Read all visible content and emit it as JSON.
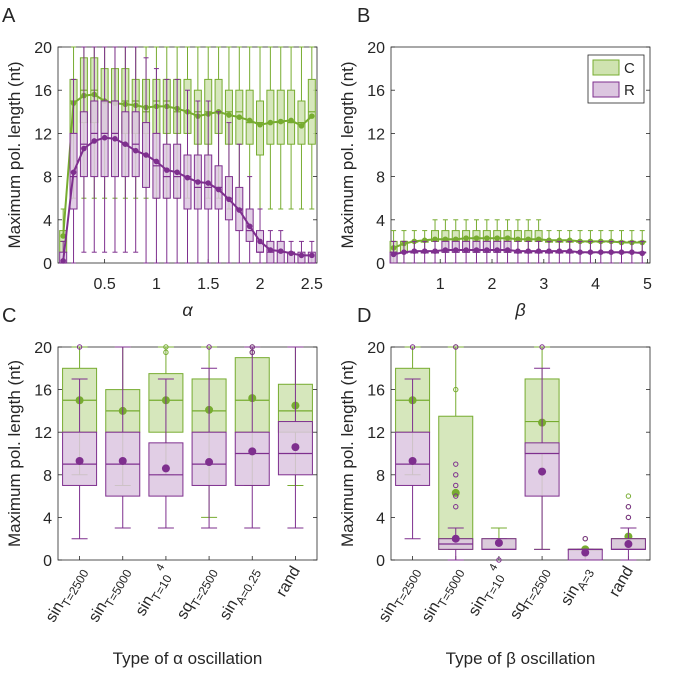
{
  "colors": {
    "C_line": "#77ac30",
    "C_fill": "#cfe3b0",
    "R_line": "#7e2f8e",
    "R_fill": "#dcc6e0",
    "axis": "#262626"
  },
  "chart_data": [
    {
      "panel": "A",
      "type": "box",
      "xlabel": "α",
      "ylabel": "Maximum pol. length (nt)",
      "xlim": [
        0.05,
        2.55
      ],
      "ylim": [
        0,
        20
      ],
      "xticks": [
        0.5,
        1,
        1.5,
        2,
        2.5
      ],
      "xticklabels": [
        "0.5",
        "1",
        "1.5",
        "2",
        "2.5"
      ],
      "yticks": [
        0,
        4,
        8,
        12,
        16,
        20
      ],
      "x": [
        0.1,
        0.2,
        0.3,
        0.4,
        0.5,
        0.6,
        0.7,
        0.8,
        0.9,
        1.0,
        1.1,
        1.2,
        1.3,
        1.4,
        1.5,
        1.6,
        1.7,
        1.8,
        1.9,
        2.0,
        2.1,
        2.2,
        2.3,
        2.4,
        2.5
      ],
      "series": [
        {
          "name": "C",
          "means": [
            2.5,
            14.8,
            15.5,
            15.6,
            15.0,
            14.8,
            14.7,
            14.6,
            14.4,
            14.5,
            14.5,
            14.3,
            14.0,
            13.6,
            13.8,
            14.0,
            13.7,
            13.5,
            13.2,
            12.8,
            13.0,
            13.1,
            13.2,
            12.7,
            13.6
          ],
          "medians": [
            2,
            15,
            16,
            16,
            15,
            15,
            15,
            15,
            14,
            15,
            15,
            14,
            14,
            14,
            14,
            14,
            14,
            14,
            13,
            13,
            13,
            13,
            13,
            13,
            14
          ],
          "q1": [
            1,
            12,
            13,
            13,
            12,
            12,
            12,
            12,
            12,
            12,
            12,
            12,
            12,
            11,
            11,
            12,
            11,
            11,
            11,
            10,
            11,
            11,
            11,
            11,
            11
          ],
          "q3": [
            3,
            17,
            19,
            19,
            18,
            18,
            18,
            17,
            17,
            17,
            17,
            17,
            17,
            16,
            17,
            17,
            16,
            16,
            16,
            15,
            16,
            16,
            16,
            15,
            17
          ],
          "wlo": [
            0,
            6,
            6,
            6,
            6,
            6,
            6,
            6,
            6,
            6,
            6,
            6,
            6,
            5,
            6,
            6,
            5,
            5,
            5,
            5,
            5,
            5,
            5,
            5,
            5
          ],
          "whi": [
            5,
            20,
            20,
            20,
            20,
            20,
            20,
            20,
            20,
            20,
            20,
            20,
            20,
            20,
            20,
            20,
            20,
            20,
            20,
            20,
            20,
            20,
            20,
            20,
            20
          ]
        },
        {
          "name": "R",
          "means": [
            0.2,
            8.4,
            10.6,
            11.3,
            11.6,
            11.5,
            11.0,
            10.4,
            10.0,
            9.4,
            8.6,
            8.4,
            7.9,
            7.5,
            7.4,
            6.8,
            5.9,
            4.9,
            3.4,
            2.0,
            1.2,
            1.1,
            0.9,
            0.7,
            0.7
          ],
          "medians": [
            0,
            8,
            11,
            12,
            12,
            12,
            11,
            11,
            10,
            9,
            8,
            8,
            8,
            7,
            7,
            7,
            6,
            5,
            3,
            1,
            1,
            1,
            1,
            0,
            0
          ],
          "q1": [
            0,
            5,
            8,
            8,
            8,
            8,
            8,
            8,
            7,
            6,
            6,
            6,
            5,
            5,
            5,
            5,
            4,
            3,
            2,
            1,
            0,
            0,
            0,
            0,
            0
          ],
          "q3": [
            1,
            12,
            14,
            15,
            15,
            15,
            14,
            14,
            13,
            12,
            11,
            11,
            10,
            10,
            10,
            9,
            8,
            7,
            5,
            3,
            2,
            2,
            1,
            1,
            1
          ],
          "wlo": [
            0,
            0,
            1,
            1,
            1,
            1,
            1,
            1,
            0,
            0,
            0,
            0,
            0,
            0,
            0,
            0,
            0,
            0,
            0,
            0,
            0,
            0,
            0,
            0,
            0
          ],
          "whi": [
            2,
            17,
            20,
            20,
            20,
            20,
            20,
            20,
            19,
            18,
            17,
            17,
            16,
            15,
            15,
            14,
            13,
            11,
            8,
            5,
            3,
            3,
            2,
            2,
            2
          ]
        }
      ]
    },
    {
      "panel": "B",
      "type": "box",
      "xlabel": "β",
      "ylabel": "Maximum pol. length (nt)",
      "xlim": [
        0.05,
        5.05
      ],
      "ylim": [
        0,
        20
      ],
      "xticks": [
        1,
        2,
        3,
        4,
        5
      ],
      "xticklabels": [
        "1",
        "2",
        "3",
        "4",
        "5"
      ],
      "yticks": [
        0,
        4,
        8,
        12,
        16,
        20
      ],
      "legend": {
        "placement": "top-right",
        "entries": [
          "C",
          "R"
        ]
      },
      "x": [
        0.1,
        0.3,
        0.5,
        0.7,
        0.9,
        1.1,
        1.3,
        1.5,
        1.7,
        1.9,
        2.1,
        2.3,
        2.5,
        2.7,
        2.9,
        3.1,
        3.3,
        3.5,
        3.7,
        3.9,
        4.1,
        4.3,
        4.5,
        4.7,
        4.9
      ],
      "series": [
        {
          "name": "C",
          "means": [
            1.4,
            1.8,
            2.0,
            2.1,
            2.2,
            2.2,
            2.2,
            2.3,
            2.3,
            2.3,
            2.3,
            2.3,
            2.2,
            2.2,
            2.2,
            2.1,
            2.1,
            2.1,
            2.0,
            2.0,
            2.0,
            2.0,
            1.9,
            1.9,
            1.9
          ],
          "medians": [
            1,
            2,
            2,
            2,
            2,
            2,
            2,
            2,
            2,
            2,
            2,
            2,
            2,
            2,
            2,
            2,
            2,
            2,
            2,
            2,
            2,
            2,
            2,
            2,
            2
          ],
          "q1": [
            1,
            1,
            2,
            2,
            2,
            2,
            2,
            2,
            2,
            2,
            2,
            2,
            2,
            2,
            2,
            2,
            2,
            2,
            2,
            2,
            2,
            2,
            2,
            2,
            2
          ],
          "q3": [
            2,
            2,
            2,
            2,
            3,
            3,
            3,
            3,
            3,
            3,
            3,
            3,
            3,
            3,
            3,
            2,
            2,
            2,
            2,
            2,
            2,
            2,
            2,
            2,
            2
          ],
          "wlo": [
            0,
            0,
            1,
            1,
            1,
            1,
            1,
            1,
            1,
            1,
            1,
            1,
            1,
            1,
            1,
            1,
            1,
            1,
            1,
            1,
            1,
            1,
            1,
            1,
            1
          ],
          "whi": [
            3,
            3,
            3,
            3,
            4,
            4,
            4,
            4,
            4,
            4,
            4,
            4,
            4,
            4,
            4,
            3,
            3,
            3,
            3,
            3,
            3,
            3,
            3,
            3,
            3
          ]
        },
        {
          "name": "R",
          "means": [
            0.8,
            1.0,
            1.1,
            1.1,
            1.1,
            1.2,
            1.2,
            1.2,
            1.2,
            1.2,
            1.2,
            1.2,
            1.1,
            1.1,
            1.1,
            1.1,
            1.1,
            1.1,
            1.0,
            1.0,
            1.0,
            1.0,
            1.0,
            1.0,
            0.9
          ],
          "medians": [
            1,
            1,
            1,
            1,
            1,
            1,
            1,
            1,
            1,
            1,
            1,
            1,
            1,
            1,
            1,
            1,
            1,
            1,
            1,
            1,
            1,
            1,
            1,
            1,
            1
          ],
          "q1": [
            0,
            1,
            1,
            1,
            1,
            1,
            1,
            1,
            1,
            1,
            1,
            1,
            1,
            1,
            1,
            1,
            1,
            1,
            1,
            1,
            1,
            1,
            1,
            1,
            1
          ],
          "q3": [
            1,
            1,
            1,
            1,
            1,
            2,
            2,
            2,
            2,
            2,
            2,
            2,
            1,
            1,
            1,
            1,
            1,
            1,
            1,
            1,
            1,
            1,
            1,
            1,
            1
          ],
          "wlo": [
            0,
            0,
            0,
            0,
            0,
            0,
            0,
            0,
            0,
            0,
            0,
            0,
            0,
            0,
            0,
            0,
            0,
            0,
            0,
            0,
            0,
            0,
            0,
            0,
            0
          ],
          "whi": [
            2,
            2,
            2,
            2,
            2,
            2,
            2,
            2,
            2,
            2,
            2,
            2,
            2,
            2,
            2,
            2,
            2,
            2,
            2,
            2,
            2,
            2,
            2,
            2,
            2
          ]
        }
      ]
    },
    {
      "panel": "C",
      "type": "box",
      "xlabel": "Type of α oscillation",
      "ylabel": "Maximum pol. length (nt)",
      "ylim": [
        0,
        20
      ],
      "yticks": [
        0,
        4,
        8,
        12,
        16,
        20
      ],
      "categories": [
        {
          "base": "sin",
          "sub": "T=2500",
          "sup": ""
        },
        {
          "base": "sin",
          "sub": "T=5000",
          "sup": ""
        },
        {
          "base": "sin",
          "sub": "T=10",
          "sup": "4"
        },
        {
          "base": "sq",
          "sub": "T=2500",
          "sup": ""
        },
        {
          "base": "sin",
          "sub": "A=0.25",
          "sup": ""
        },
        {
          "base": "rand",
          "sub": "",
          "sup": ""
        }
      ],
      "series": [
        {
          "name": "C",
          "medians": [
            15,
            14,
            15,
            14,
            15,
            14
          ],
          "means": [
            15.0,
            14.0,
            15.0,
            14.1,
            15.2,
            14.5
          ],
          "q1": [
            12,
            12,
            12,
            12,
            12,
            12
          ],
          "q3": [
            18,
            16,
            17.5,
            17,
            19,
            16.5
          ],
          "wlo": [
            8,
            7,
            8,
            4,
            7,
            7
          ],
          "whi": [
            20,
            20,
            20,
            20,
            20,
            20
          ],
          "outliers": [
            [],
            [],
            [
              19.5,
              20
            ],
            [],
            [
              19.5,
              20
            ],
            []
          ]
        },
        {
          "name": "R",
          "medians": [
            9,
            9,
            8,
            9,
            10,
            10
          ],
          "means": [
            9.3,
            9.3,
            8.6,
            9.2,
            10.2,
            10.6
          ],
          "q1": [
            7,
            6,
            6,
            7,
            7,
            8
          ],
          "q3": [
            12,
            12,
            11,
            12,
            12,
            13
          ],
          "wlo": [
            2,
            3,
            3,
            3,
            3,
            3
          ],
          "whi": [
            17,
            20,
            17,
            18,
            20,
            20
          ],
          "outliers": [
            [
              20
            ],
            [],
            [],
            [
              20
            ],
            [
              19.5,
              20
            ],
            []
          ]
        }
      ]
    },
    {
      "panel": "D",
      "type": "box",
      "xlabel": "Type of β oscillation",
      "ylabel": "Maximum pol. length (nt)",
      "ylim": [
        0,
        20
      ],
      "yticks": [
        0,
        4,
        8,
        12,
        16,
        20
      ],
      "categories": [
        {
          "base": "sin",
          "sub": "T=2500",
          "sup": ""
        },
        {
          "base": "sin",
          "sub": "T=5000",
          "sup": ""
        },
        {
          "base": "sin",
          "sub": "T=10",
          "sup": "4"
        },
        {
          "base": "sq",
          "sub": "T=2500",
          "sup": ""
        },
        {
          "base": "sin",
          "sub": "A=3",
          "sup": ""
        },
        {
          "base": "rand",
          "sub": "",
          "sup": ""
        }
      ],
      "series": [
        {
          "name": "C",
          "medians": [
            15,
            2,
            1,
            13,
            1,
            2
          ],
          "means": [
            15.0,
            6.3,
            1.7,
            12.9,
            1.0,
            2.2
          ],
          "q1": [
            12,
            1,
            1,
            10,
            1,
            1
          ],
          "q3": [
            18,
            13.5,
            2,
            17,
            1,
            2
          ],
          "wlo": [
            8,
            1,
            1,
            1,
            0,
            1
          ],
          "whi": [
            20,
            20,
            3,
            20,
            1,
            3
          ],
          "outliers": [
            [],
            [
              16,
              20
            ],
            [],
            [],
            [
              2
            ],
            [
              4,
              5,
              6
            ]
          ]
        },
        {
          "name": "R",
          "medians": [
            9,
            1.5,
            1,
            10,
            1,
            1
          ],
          "means": [
            9.3,
            2.0,
            1.6,
            8.3,
            0.7,
            1.5
          ],
          "q1": [
            7,
            1,
            1,
            6,
            0,
            1
          ],
          "q3": [
            12,
            2,
            2,
            11,
            1,
            2
          ],
          "wlo": [
            2,
            0,
            1,
            1,
            0,
            0
          ],
          "whi": [
            17,
            3,
            2,
            18,
            1,
            3
          ],
          "outliers": [
            [
              20
            ],
            [
              5,
              6,
              7,
              8,
              9,
              20
            ],
            [
              0
            ],
            [
              20
            ],
            [
              2
            ],
            [
              4,
              5
            ]
          ]
        }
      ]
    }
  ],
  "panel_letters": [
    "A",
    "B",
    "C",
    "D"
  ]
}
